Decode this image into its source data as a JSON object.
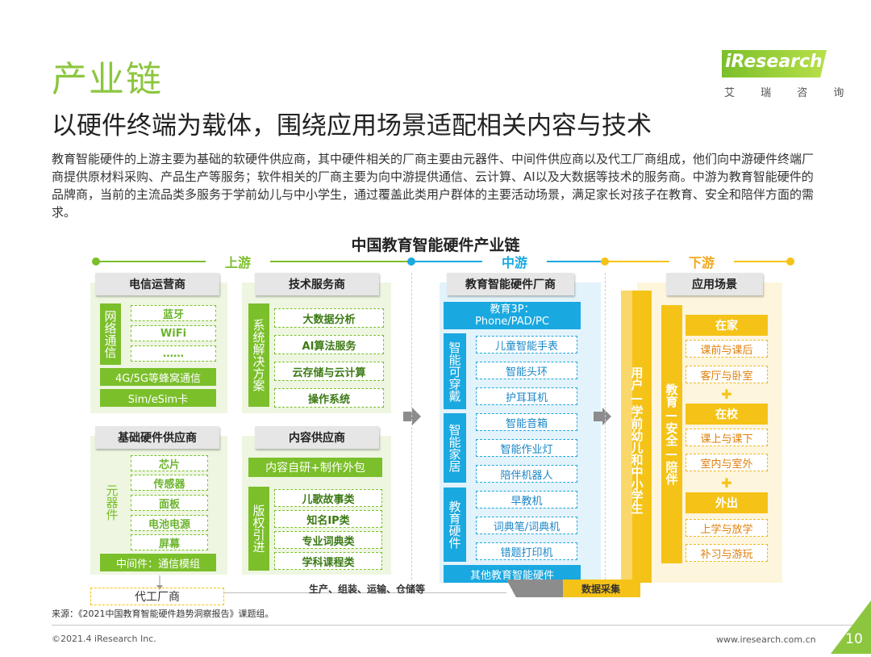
{
  "header": {
    "title": "产业链",
    "subtitle": "以硬件终端为载体，围绕应用场景适配相关内容与技术",
    "brand": "iResearch",
    "brand_cn": "艾 瑞 咨 询",
    "description": "教育智能硬件的上游主要为基础的软硬件供应商，其中硬件相关的厂商主要由元器件、中间件供应商以及代工厂商组成，他们向中游硬件终端厂商提供原材料采购、产品生产等服务；软件相关的厂商主要为向中游提供通信、云计算、AI以及大数据等技术的服务商。中游为教育智能硬件的品牌商，当前的主流品类多服务于学前幼儿与中小学生，通过覆盖此类用户群体的主要活动场景，满足家长对孩子在教育、安全和陪伴方面的需求。"
  },
  "diagram": {
    "title": "中国教育智能硬件产业链",
    "upstream": "上游",
    "midstream": "中游",
    "downstream": "下游",
    "telecom": {
      "header": "电信运营商",
      "side": "网络通信",
      "items": [
        "蓝牙",
        "WiFi",
        "……"
      ],
      "fills": [
        "4G/5G等蜂窝通信",
        "Sim/eSim卡"
      ]
    },
    "tech": {
      "header": "技术服务商",
      "side": "系统解决方案",
      "items": [
        "大数据分析",
        "AI算法服务",
        "云存储与云计算",
        "操作系统"
      ]
    },
    "hardware": {
      "header": "基础硬件供应商",
      "side": "元器件",
      "items": [
        "芯片",
        "传感器",
        "面板",
        "电池电源",
        "屏幕"
      ],
      "fill": "中间件：通信模组"
    },
    "content": {
      "header": "内容供应商",
      "fill": "内容自研+制作外包",
      "side": "版权引进",
      "items": [
        "儿歌故事类",
        "知名IP类",
        "专业词典类",
        "学科课程类"
      ]
    },
    "oem": "代工厂商",
    "services": "生产、组装、运输、仓储等",
    "mid": {
      "header": "教育智能硬件厂商",
      "top": "教育3P：Phone/PAD/PC",
      "groups": [
        {
          "side": "智能可穿戴",
          "items": [
            "儿童智能手表",
            "智能头环",
            "护耳耳机"
          ]
        },
        {
          "side": "智能家居",
          "items": [
            "智能音箱",
            "智能作业灯",
            "陪伴机器人"
          ]
        },
        {
          "side": "教育硬件",
          "items": [
            "早教机",
            "词典笔/词典机",
            "错题打印机"
          ]
        }
      ],
      "bottom": "其他教育智能硬件"
    },
    "users": "用户—学前幼儿和中小学生",
    "scene": {
      "header": "应用场景",
      "side": "教育—安全—陪伴",
      "groups": [
        {
          "title": "在家",
          "items": [
            "课前与课后",
            "客厅与卧室"
          ]
        },
        {
          "title": "在校",
          "items": [
            "课上与课下",
            "室内与室外"
          ]
        },
        {
          "title": "外出",
          "items": [
            "上学与放学",
            "补习与游玩"
          ]
        }
      ],
      "plus": "✚"
    },
    "data_collection": "数据采集"
  },
  "footer": {
    "source": "来源：《2021中国教育智能硬件趋势洞察报告》课题组。",
    "copyright": "©2021.4 iResearch Inc.",
    "url": "www.iresearch.com.cn",
    "page": "10"
  },
  "colors": {
    "green": "#7bbf2a",
    "blue": "#1aa8e0",
    "yellow": "#f5c318"
  }
}
